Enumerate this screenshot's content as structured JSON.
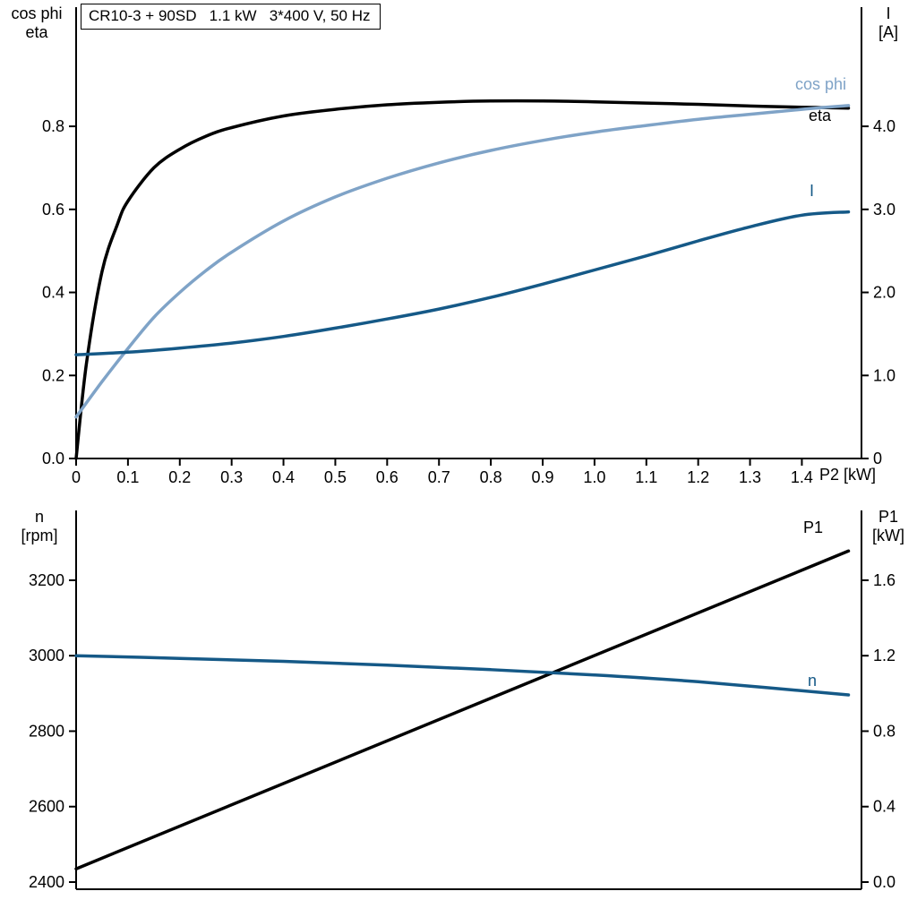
{
  "colors": {
    "curve_black": "#000000",
    "curve_light_blue": "#7fa3c7",
    "curve_dark_blue": "#155987",
    "axis": "#000000",
    "background": "#ffffff"
  },
  "chart_data": [
    {
      "type": "line",
      "title": "CR10-3 + 90SD   1.1 kW   3*400 V, 50 Hz",
      "x_axis": {
        "label": "P2 [kW]",
        "lim": [
          0,
          1.515
        ],
        "ticks": [
          0,
          0.1,
          0.2,
          0.3,
          0.4,
          0.5,
          0.6,
          0.7,
          0.8,
          0.9,
          1.0,
          1.1,
          1.2,
          1.3,
          1.4
        ],
        "tick_labels": [
          "0",
          "0.1",
          "0.2",
          "0.3",
          "0.4",
          "0.5",
          "0.6",
          "0.7",
          "0.8",
          "0.9",
          "1.0",
          "1.1",
          "1.2",
          "1.3",
          "1.4"
        ]
      },
      "left_axis": {
        "title_lines": [
          "cos phi",
          "eta"
        ],
        "lim": [
          0,
          1.087
        ],
        "ticks": [
          0,
          0.2,
          0.4,
          0.6,
          0.8
        ],
        "tick_labels": [
          "0.0",
          "0.2",
          "0.4",
          "0.6",
          "0.8"
        ]
      },
      "right_axis": {
        "title_lines": [
          "I",
          "[A]"
        ],
        "lim": [
          0,
          5.435
        ],
        "ticks": [
          0,
          1,
          2,
          3,
          4
        ],
        "tick_labels": [
          "0",
          "1.0",
          "2.0",
          "3.0",
          "4.0"
        ]
      },
      "grid": false,
      "series": [
        {
          "name": "eta",
          "axis": "left",
          "color": "#000000",
          "x": [
            0,
            0.02,
            0.05,
            0.08,
            0.1,
            0.15,
            0.2,
            0.25,
            0.3,
            0.4,
            0.5,
            0.6,
            0.7,
            0.8,
            0.9,
            1.0,
            1.1,
            1.2,
            1.3,
            1.4,
            1.49
          ],
          "y": [
            0,
            0.23,
            0.45,
            0.565,
            0.62,
            0.7,
            0.745,
            0.776,
            0.797,
            0.825,
            0.841,
            0.852,
            0.858,
            0.861,
            0.861,
            0.859,
            0.856,
            0.853,
            0.849,
            0.846,
            0.844
          ]
        },
        {
          "name": "cos phi",
          "axis": "left",
          "color": "#7fa3c7",
          "x": [
            0,
            0.05,
            0.1,
            0.15,
            0.2,
            0.25,
            0.3,
            0.4,
            0.5,
            0.6,
            0.7,
            0.8,
            0.9,
            1.0,
            1.1,
            1.2,
            1.3,
            1.4,
            1.49
          ],
          "y": [
            0.1,
            0.185,
            0.265,
            0.34,
            0.4,
            0.452,
            0.497,
            0.572,
            0.63,
            0.675,
            0.712,
            0.742,
            0.766,
            0.786,
            0.802,
            0.817,
            0.829,
            0.841,
            0.85
          ]
        },
        {
          "name": "I",
          "axis": "right",
          "color": "#155987",
          "x": [
            0,
            0.1,
            0.2,
            0.3,
            0.4,
            0.5,
            0.6,
            0.7,
            0.8,
            0.9,
            1.0,
            1.1,
            1.2,
            1.3,
            1.4,
            1.49
          ],
          "y": [
            1.25,
            1.28,
            1.33,
            1.39,
            1.47,
            1.57,
            1.68,
            1.8,
            1.94,
            2.1,
            2.27,
            2.44,
            2.62,
            2.79,
            2.93,
            2.97
          ]
        }
      ]
    },
    {
      "type": "line",
      "title": "",
      "x_axis": {
        "label": "",
        "lim": [
          0,
          1.515
        ],
        "ticks": [],
        "tick_labels": []
      },
      "left_axis": {
        "title_lines": [
          "n",
          "[rpm]"
        ],
        "lim": [
          2381,
          3385
        ],
        "ticks": [
          2400,
          2600,
          2800,
          3000,
          3200
        ],
        "tick_labels": [
          "2400",
          "2600",
          "2800",
          "3000",
          "3200"
        ]
      },
      "right_axis": {
        "title_lines": [
          "P1",
          "[kW]"
        ],
        "lim": [
          -0.038,
          1.97
        ],
        "ticks": [
          0,
          0.4,
          0.8,
          1.2,
          1.6
        ],
        "tick_labels": [
          "0.0",
          "0.4",
          "0.8",
          "1.2",
          "1.6"
        ]
      },
      "grid": false,
      "series": [
        {
          "name": "P1",
          "axis": "right",
          "color": "#000000",
          "x": [
            0,
            1.49
          ],
          "y": [
            0.07,
            1.755
          ]
        },
        {
          "name": "n",
          "axis": "left",
          "color": "#155987",
          "x": [
            0,
            0.2,
            0.4,
            0.6,
            0.8,
            1.0,
            1.2,
            1.49
          ],
          "y": [
            3000,
            2993,
            2985,
            2975,
            2963,
            2949,
            2931,
            2896
          ]
        }
      ]
    }
  ]
}
